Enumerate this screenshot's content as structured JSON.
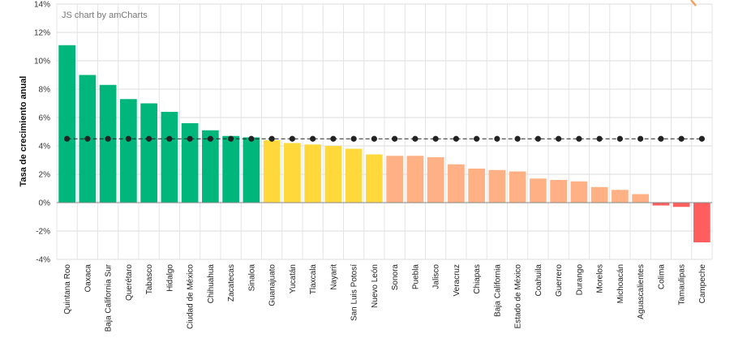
{
  "credit": "JS chart by amCharts",
  "chart_data": {
    "type": "bar",
    "ylabel": "Tasa de crecimiento anual",
    "xlabel": "",
    "ylim": [
      -4,
      14
    ],
    "yticks": [
      14,
      12,
      10,
      8,
      6,
      4,
      2,
      0,
      -2,
      -4
    ],
    "ytick_labels": [
      "14%",
      "12%",
      "10%",
      "8%",
      "6%",
      "4%",
      "2%",
      "0%",
      "-2%",
      "-4%"
    ],
    "grid": true,
    "categories": [
      "Quintana Roo",
      "Oaxaca",
      "Baja California Sur",
      "Querétaro",
      "Tabasco",
      "Hidalgo",
      "Ciudad de México",
      "Chihuahua",
      "Zacatecas",
      "Sinaloa",
      "Guanajuato",
      "Yucatán",
      "Tlaxcala",
      "Nayarit",
      "San Luis Potosí",
      "Nuevo León",
      "Sonora",
      "Puebla",
      "Jalisco",
      "Veracruz",
      "Chiapas",
      "Baja California",
      "Estado de México",
      "Coahuila",
      "Guerrero",
      "Durango",
      "Morelos",
      "Michoacán",
      "Aguascalientes",
      "Colima",
      "Tamaulipas",
      "Campeche"
    ],
    "values": [
      11.1,
      9.0,
      8.3,
      7.3,
      7.0,
      6.4,
      5.6,
      5.1,
      4.7,
      4.6,
      4.4,
      4.2,
      4.1,
      4.0,
      3.8,
      3.4,
      3.3,
      3.3,
      3.2,
      2.7,
      2.4,
      2.3,
      2.2,
      1.7,
      1.6,
      1.5,
      1.1,
      0.9,
      0.6,
      -0.2,
      -0.3,
      -2.8
    ],
    "colors": [
      "#00b67a",
      "#00b67a",
      "#00b67a",
      "#00b67a",
      "#00b67a",
      "#00b67a",
      "#00b67a",
      "#00b67a",
      "#00b67a",
      "#00b67a",
      "#ffd93b",
      "#ffd93b",
      "#ffd93b",
      "#ffd93b",
      "#ffd93b",
      "#ffd93b",
      "#ffb185",
      "#ffb185",
      "#ffb185",
      "#ffb185",
      "#ffb185",
      "#ffb185",
      "#ffb185",
      "#ffb185",
      "#ffb185",
      "#ffb185",
      "#ffb185",
      "#ffb185",
      "#ffb185",
      "#ff5e5e",
      "#ff5e5e",
      "#ff5e5e"
    ],
    "reference_series": {
      "value": 4.5,
      "style": "dashed line with dots",
      "color": "#222222"
    }
  }
}
